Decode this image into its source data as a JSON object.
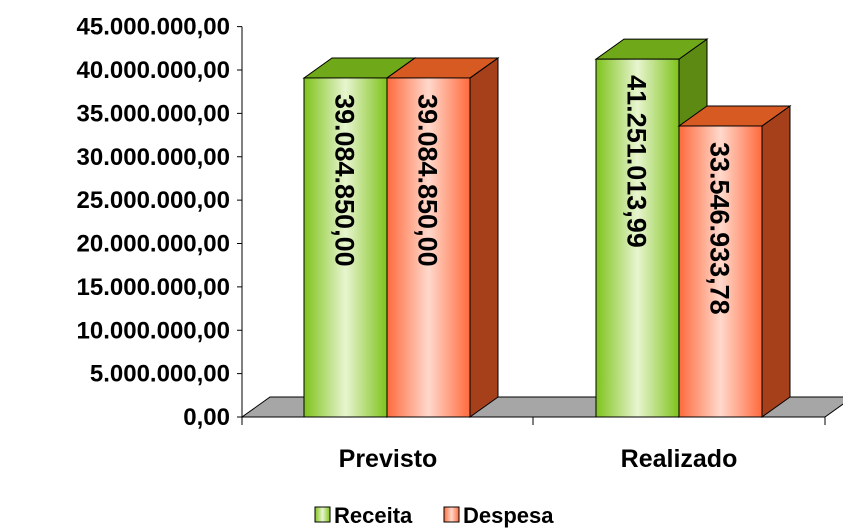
{
  "chart_data": {
    "type": "bar",
    "categories": [
      "Previsto",
      "Realizado"
    ],
    "series": [
      {
        "name": "Receita",
        "values": [
          39084850.0,
          41251013.99
        ],
        "labels": [
          "39.084.850,00",
          "41.251.013,99"
        ],
        "color": "#7FC31C",
        "color_light": "#E8F5D0",
        "color_side": "#5C8A12",
        "color_top": "#6FA818"
      },
      {
        "name": "Despesa",
        "values": [
          39084850.0,
          33546933.78
        ],
        "labels": [
          "39.084.850,00",
          "33.546.933,78"
        ],
        "color": "#FF6A3D",
        "color_light": "#FFD9CC",
        "color_side": "#A6401A",
        "color_top": "#D65A22"
      }
    ],
    "ylim": [
      0,
      45000000
    ],
    "yticks": [
      0,
      5000000,
      10000000,
      15000000,
      20000000,
      25000000,
      30000000,
      35000000,
      40000000,
      45000000
    ],
    "ytick_labels": [
      "0,00",
      "5.000.000,00",
      "10.000.000,00",
      "15.000.000,00",
      "20.000.000,00",
      "25.000.000,00",
      "30.000.000,00",
      "35.000.000,00",
      "40.000.000,00",
      "45.000.000,00"
    ],
    "grid": false,
    "legend_position": "bottom",
    "floor_color": "#A6A6A6"
  }
}
